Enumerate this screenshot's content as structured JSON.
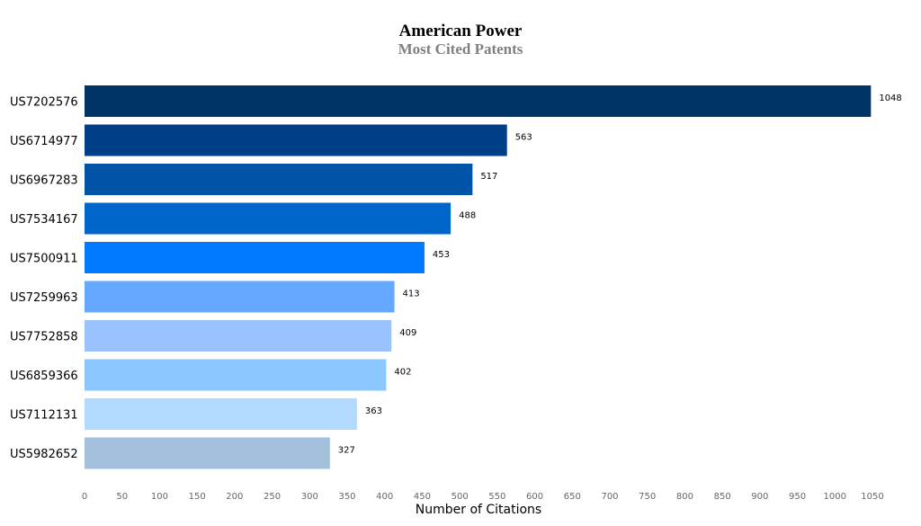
{
  "chart_data": {
    "type": "bar",
    "orientation": "horizontal",
    "title": "American Power",
    "subtitle": "Most Cited Patents",
    "xlabel": "Number of Citations",
    "ylabel": "",
    "categories": [
      "US7202576",
      "US6714977",
      "US6967283",
      "US7534167",
      "US7500911",
      "US7259963",
      "US7752858",
      "US6859366",
      "US7112131",
      "US5982652"
    ],
    "values": [
      1048,
      563,
      517,
      488,
      453,
      413,
      409,
      402,
      363,
      327
    ],
    "colors": [
      "#003366",
      "#003f87",
      "#0053a6",
      "#0066cc",
      "#007bff",
      "#66a8ff",
      "#99c2ff",
      "#8ac8ff",
      "#b2d9ff",
      "#a3c1dc"
    ],
    "xlim": [
      0,
      1050
    ],
    "xticks": [
      0,
      50,
      100,
      150,
      200,
      250,
      300,
      350,
      400,
      450,
      500,
      550,
      600,
      650,
      700,
      750,
      800,
      850,
      900,
      950,
      1000,
      1050
    ],
    "grid": false,
    "legend": "none"
  }
}
